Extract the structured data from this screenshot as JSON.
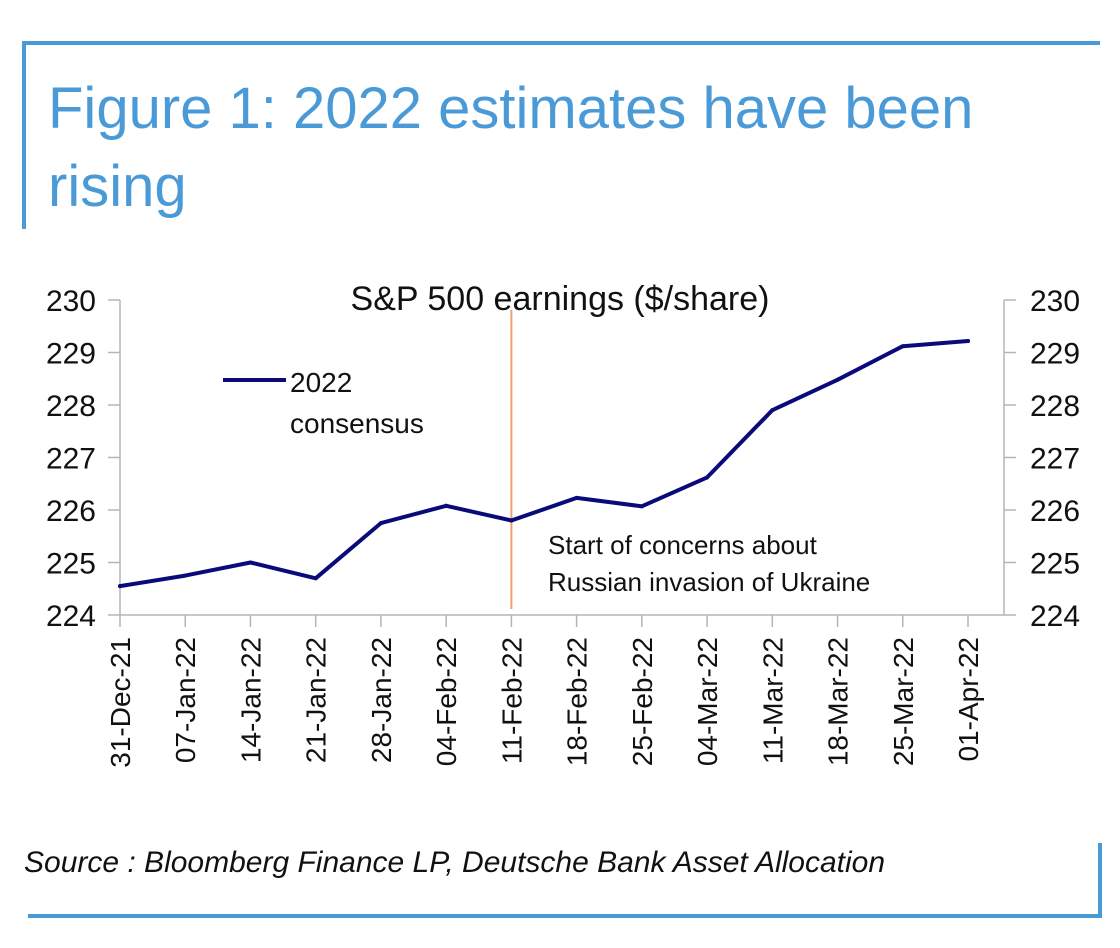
{
  "figure": {
    "title": "Figure 1: 2022 estimates have been rising",
    "source": "Source : Bloomberg Finance LP, Deutsche Bank Asset Allocation"
  },
  "colors": {
    "accent": "#4a9ad8",
    "series": "#0a0a7a",
    "marker_line": "#f0a070"
  },
  "chart_data": {
    "type": "line",
    "title": "S&P 500 earnings ($/share)",
    "x": [
      "31-Dec-21",
      "07-Jan-22",
      "14-Jan-22",
      "21-Jan-22",
      "28-Jan-22",
      "04-Feb-22",
      "11-Feb-22",
      "18-Feb-22",
      "25-Feb-22",
      "04-Mar-22",
      "11-Mar-22",
      "18-Mar-22",
      "25-Mar-22",
      "01-Apr-22"
    ],
    "series": [
      {
        "name": "2022 consensus",
        "values": [
          224.55,
          224.75,
          225.0,
          224.7,
          225.75,
          226.08,
          225.8,
          226.23,
          226.07,
          226.62,
          227.9,
          228.48,
          229.12,
          229.22
        ]
      }
    ],
    "ylim": [
      224,
      230
    ],
    "yticks": [
      224,
      225,
      226,
      227,
      228,
      229,
      230
    ],
    "secondary_yticks": [
      224,
      225,
      226,
      227,
      228,
      229,
      230
    ],
    "grid": false,
    "legend": {
      "line1": "2022",
      "line2": "consensus",
      "placement": "top-left"
    },
    "annotation": {
      "x": "11-Feb-22",
      "line1": "Start of concerns about",
      "line2": "Russian invasion of Ukraine"
    }
  }
}
